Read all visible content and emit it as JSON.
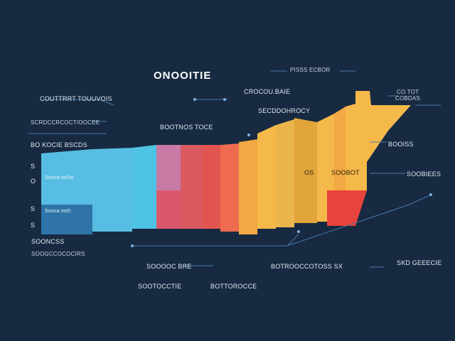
{
  "colors": {
    "background": "#172a42",
    "leader_line": "#4a78a8",
    "segments": [
      "#2f74a8",
      "#58bde2",
      "#4fc3e3",
      "#c77aa3",
      "#d95a60",
      "#ee6b4f",
      "#f2a844",
      "#f5b94a",
      "#e2a53a",
      "#e8433c"
    ]
  },
  "chart_data": {
    "type": "bar",
    "title": "ONOOITIE",
    "label_group_top_right": "PISSS ECBOR",
    "label_row_1": "COUTTRRT TOUUVOIS",
    "label_row_1_center": "CROCOU.BAIE",
    "label_row_1_right": "CO TOT",
    "label_row_1_far_right": "COBDAS",
    "label_row_2_center": "SECDDOHROCY",
    "label_row_3_left": "SCRDCCRCOCT/OOCEE",
    "label_row_3_center": "BOOTNOS TOCE",
    "label_row_4_left": "BO KOCIE BSCDS",
    "label_right_1": "BOOISS",
    "label_right_2": "SOOBIEES",
    "segment_label_os": "OS",
    "segment_label_soobot": "SOOBOT",
    "inside_label_1": "Sooca eeDo",
    "inside_label_2": "Sooca eeD",
    "y_ticks": [
      "S",
      "O",
      "S",
      "S"
    ],
    "footer_left_1": "SOONCSS",
    "footer_left_2": "SOOGCCOCOCIRS",
    "footer_center": "SOOOOC BRE",
    "footer_right": "BOTROOCCOTOSS SX",
    "footer_far_right": "SKD GEEECIE",
    "footer_bottom_left": "SOOTOCCTIE",
    "footer_bottom_center": "BOTTOROCCE"
  }
}
